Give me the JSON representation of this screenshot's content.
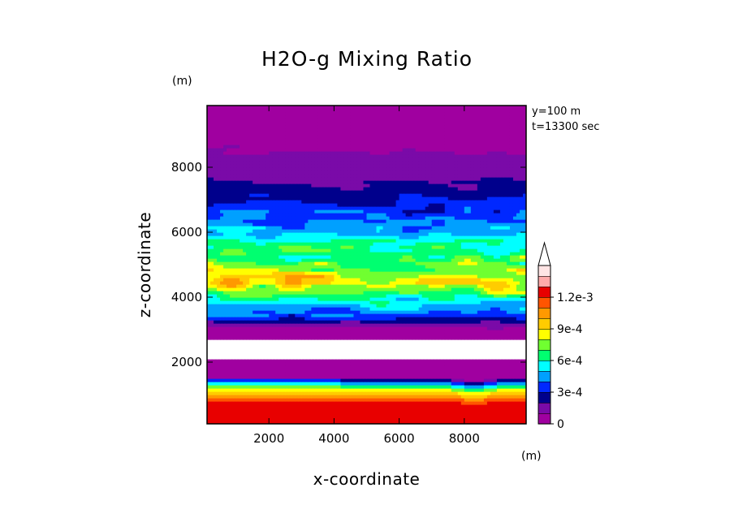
{
  "chart_data": {
    "type": "heatmap",
    "title": "H2O-g Mixing Ratio",
    "xlabel": "x-coordinate",
    "ylabel": "z-coordinate",
    "x_unit": "(m)",
    "y_unit": "(m)",
    "xlim": [
      100,
      9900
    ],
    "ylim": [
      100,
      9900
    ],
    "x_ticks": [
      "2000",
      "4000",
      "6000",
      "8000"
    ],
    "y_ticks": [
      "2000",
      "4000",
      "6000",
      "8000"
    ],
    "annotations": [
      "y=100 m",
      "t=13300 sec"
    ],
    "colorbar": {
      "min": 0,
      "max": 0.0012,
      "step": 0.0001,
      "extend": "max",
      "tick_labels": [
        "0",
        "3e-4",
        "6e-4",
        "9e-4",
        "1.2e-3"
      ],
      "colors": [
        "#a000a0",
        "#7a0aa8",
        "#00008c",
        "#0028ff",
        "#00a0ff",
        "#00ffff",
        "#00ff70",
        "#70ff30",
        "#ffff00",
        "#ffcc00",
        "#ff9900",
        "#ff5500",
        "#e80000",
        "#ffaaaa",
        "#ffe4e4"
      ]
    },
    "profile": [
      {
        "z": 300,
        "value": 0.00125
      },
      {
        "z": 800,
        "value": 0.00123
      },
      {
        "z": 1000,
        "value": 0.00105
      },
      {
        "z": 1200,
        "value": 0.0008
      },
      {
        "z": 1400,
        "value": 0.0004
      },
      {
        "z": 1550,
        "value": 0.0001
      },
      {
        "z": 1650,
        "value": 0.0
      },
      {
        "z": 2500,
        "value": null
      },
      {
        "z": 3000,
        "value": 5e-05
      },
      {
        "z": 3200,
        "value": 0.0002
      },
      {
        "z": 3500,
        "value": 0.0004
      },
      {
        "z": 4000,
        "value": 0.0006
      },
      {
        "z": 4400,
        "value": 0.0009
      },
      {
        "z": 4800,
        "value": 0.0008
      },
      {
        "z": 5200,
        "value": 0.0007
      },
      {
        "z": 5700,
        "value": 0.0006
      },
      {
        "z": 6000,
        "value": 0.00045
      },
      {
        "z": 6400,
        "value": 0.0004
      },
      {
        "z": 7000,
        "value": 0.0003
      },
      {
        "z": 7500,
        "value": 0.0002
      },
      {
        "z": 8000,
        "value": 0.00015
      },
      {
        "z": 8500,
        "value": 0.0001
      },
      {
        "z": 9000,
        "value": 5e-05
      },
      {
        "z": 9800,
        "value": 2e-05
      }
    ]
  }
}
